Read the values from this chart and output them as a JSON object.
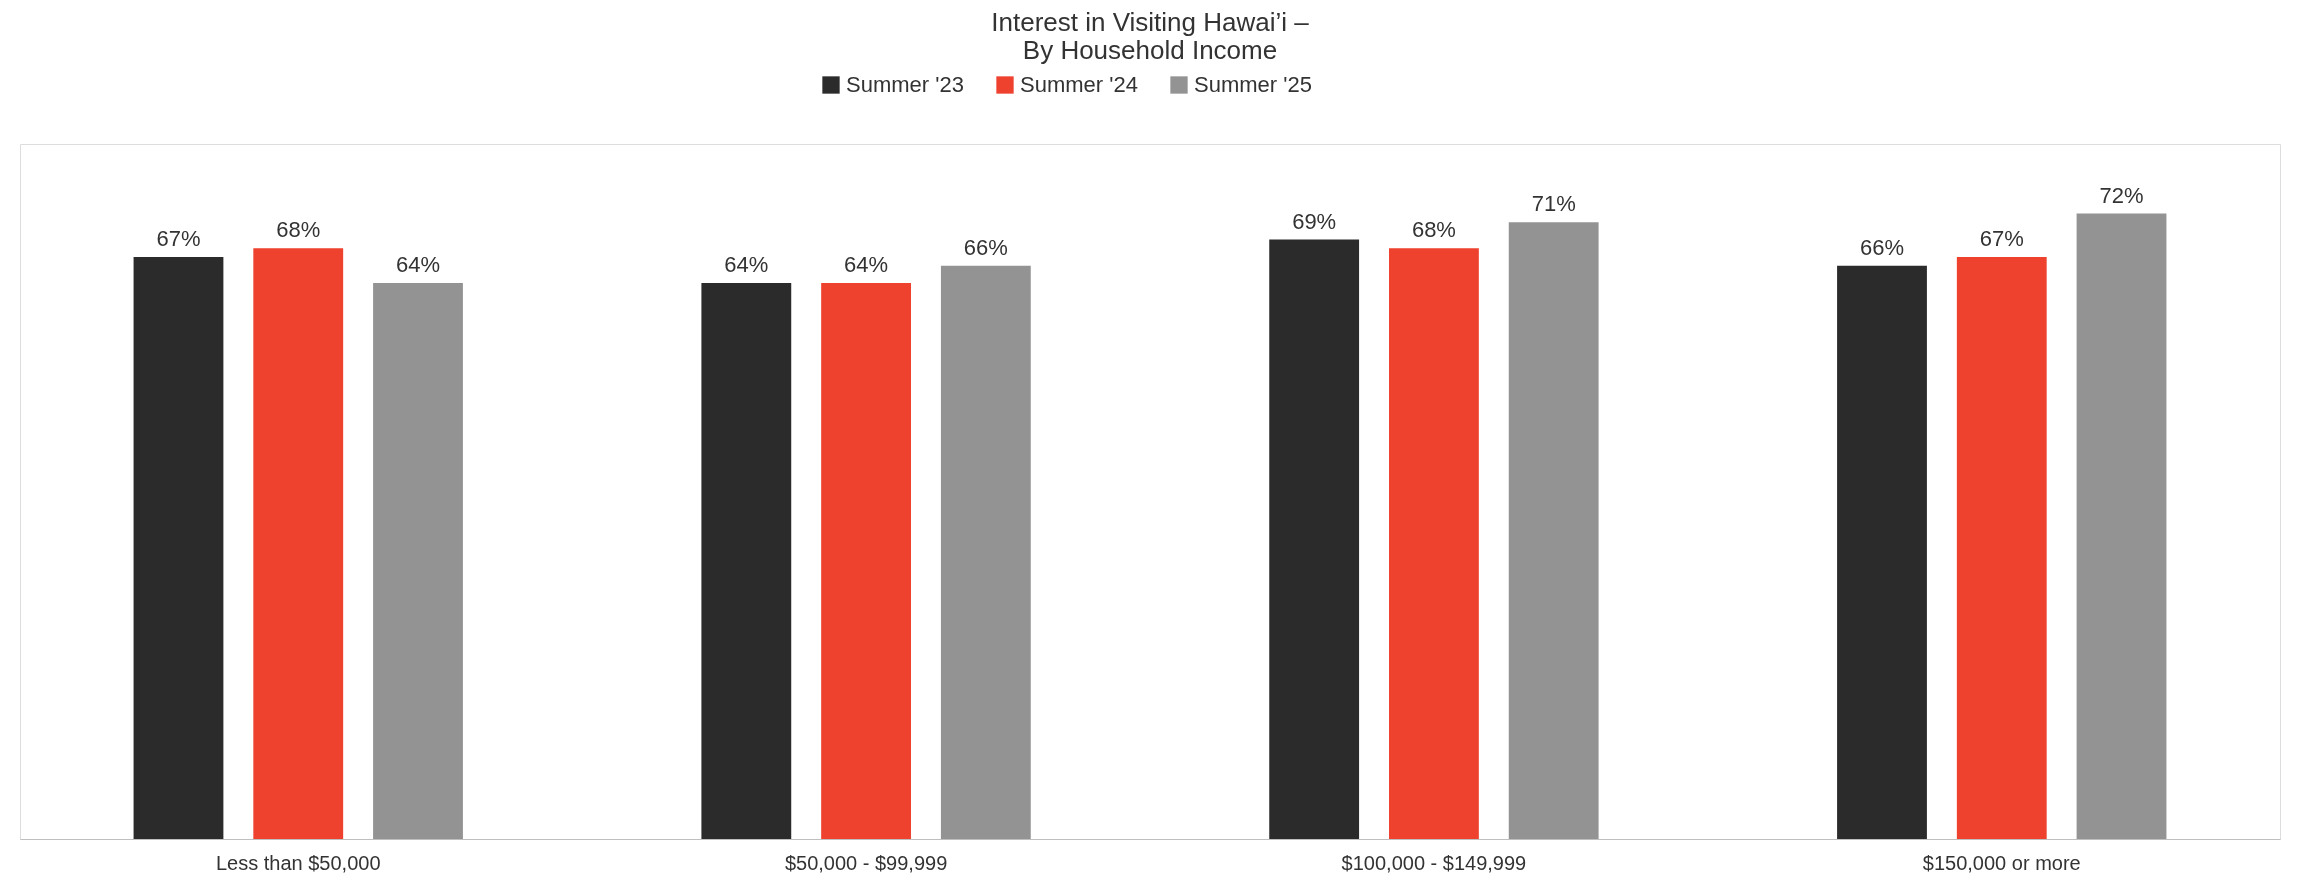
{
  "chart_data": {
    "type": "bar",
    "title": "Interest in Visiting Hawai’i –\nBy Household Income",
    "categories": [
      "Less than $50,000",
      "$50,000 - $99,999",
      "$100,000 - $149,999",
      "$150,000 or more"
    ],
    "series": [
      {
        "name": "Summer '23",
        "color": "#2b2b2b",
        "values": [
          67,
          64,
          69,
          66
        ],
        "value_labels": [
          "67%",
          "64%",
          "69%",
          "66%"
        ]
      },
      {
        "name": "Summer '24",
        "color": "#ee412e",
        "values": [
          68,
          64,
          68,
          67
        ],
        "value_labels": [
          "68%",
          "64%",
          "68%",
          "67%"
        ]
      },
      {
        "name": "Summer '25",
        "color": "#939393",
        "values": [
          64,
          66,
          71,
          72
        ],
        "value_labels": [
          "64%",
          "66%",
          "71%",
          "72%"
        ]
      }
    ],
    "ylim": [
      0,
      80
    ],
    "legend": "top",
    "grid": false
  }
}
